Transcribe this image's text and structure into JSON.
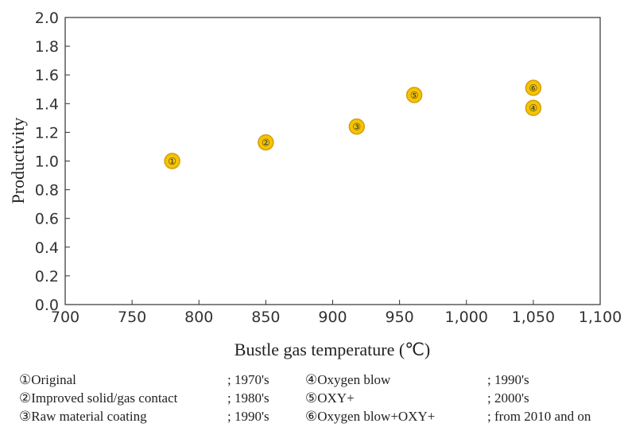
{
  "chart_data": {
    "type": "scatter",
    "xlabel": "Bustle gas temperature (℃)",
    "ylabel": "Productivity",
    "xlim": [
      700,
      1100
    ],
    "ylim": [
      0.0,
      2.0
    ],
    "x_ticks": [
      "700",
      "750",
      "800",
      "850",
      "900",
      "950",
      "1,000",
      "1,050",
      "1,100"
    ],
    "y_ticks": [
      "0.0",
      "0.2",
      "0.4",
      "0.6",
      "0.8",
      "1.0",
      "1.2",
      "1.4",
      "1.6",
      "1.8",
      "2.0"
    ],
    "grid": false,
    "marker_color": "#f5c400",
    "marker_edge": "#d39a00",
    "points": [
      {
        "label": "①",
        "x": 780,
        "y": 1.0
      },
      {
        "label": "②",
        "x": 850,
        "y": 1.13
      },
      {
        "label": "③",
        "x": 918,
        "y": 1.24
      },
      {
        "label": "④",
        "x": 1050,
        "y": 1.37
      },
      {
        "label": "⑤",
        "x": 961,
        "y": 1.46
      },
      {
        "label": "⑥",
        "x": 1050,
        "y": 1.51
      }
    ]
  },
  "legend": [
    {
      "name": "①Original",
      "era": "; 1970's",
      "name2": "④Oxygen blow",
      "era2": "; 1990's"
    },
    {
      "name": "②Improved solid/gas contact",
      "era": "; 1980's",
      "name2": "⑤OXY+",
      "era2": "; 2000's"
    },
    {
      "name": "③Raw material coating",
      "era": "; 1990's",
      "name2": "⑥Oxygen blow+OXY+",
      "era2": "; from 2010 and on"
    }
  ]
}
